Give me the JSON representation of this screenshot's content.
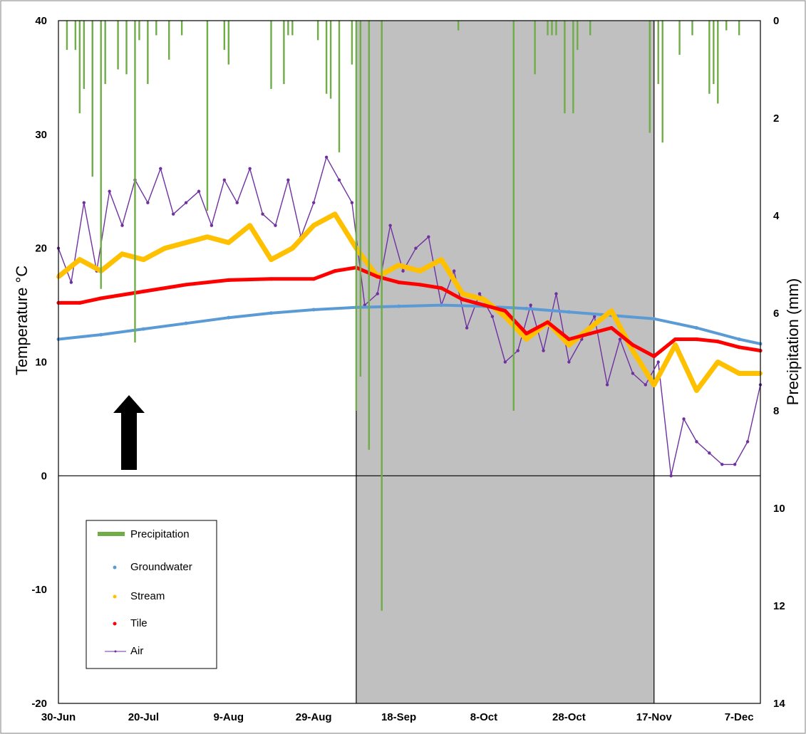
{
  "chart_data": {
    "type": "line",
    "xlabel": "",
    "ylabel": "Temperature °C",
    "y2label": "Precipitation (mm)",
    "ylim": [
      -20,
      40
    ],
    "y2lim": [
      14,
      0
    ],
    "y2_inverted": true,
    "x_range": [
      "2017-06-30",
      "2017-12-12"
    ],
    "x_tick_labels": [
      "30-Jun",
      "20-Jul",
      "9-Aug",
      "29-Aug",
      "18-Sep",
      "8-Oct",
      "28-Oct",
      "17-Nov",
      "7-Dec"
    ],
    "y_tick_labels": [
      "-20",
      "-10",
      "0",
      "10",
      "20",
      "30",
      "40"
    ],
    "y2_tick_labels": [
      "14",
      "12",
      "10",
      "8",
      "6",
      "4",
      "2",
      "0"
    ],
    "shaded_period": [
      "2017-09-08",
      "2017-11-17"
    ],
    "grid": false,
    "legend_position": "bottom-left",
    "legend_labels": [
      "Precipitation",
      "Groundwater",
      "Stream",
      "Tile",
      "Air"
    ],
    "annotation": "up-arrow",
    "colors": {
      "precipitation": "#70ad47",
      "groundwater": "#5b9bd5",
      "stream": "#ffc000",
      "tile": "#ff0000",
      "air": "#7030a0",
      "shade": "#c0c0c0"
    },
    "series": [
      {
        "name": "Precipitation",
        "axis": "y2",
        "kind": "bar",
        "x": [
          "2017-07-02",
          "2017-07-04",
          "2017-07-05",
          "2017-07-06",
          "2017-07-08",
          "2017-07-10",
          "2017-07-11",
          "2017-07-14",
          "2017-07-16",
          "2017-07-18",
          "2017-07-19",
          "2017-07-21",
          "2017-07-23",
          "2017-07-26",
          "2017-07-29",
          "2017-08-04",
          "2017-08-08",
          "2017-08-09",
          "2017-08-19",
          "2017-08-22",
          "2017-08-23",
          "2017-08-24",
          "2017-08-30",
          "2017-09-01",
          "2017-09-02",
          "2017-09-04",
          "2017-09-07",
          "2017-09-08",
          "2017-09-09",
          "2017-09-11",
          "2017-09-14",
          "2017-10-02",
          "2017-10-15",
          "2017-10-20",
          "2017-10-23",
          "2017-10-24",
          "2017-10-25",
          "2017-10-27",
          "2017-10-29",
          "2017-10-30",
          "2017-11-02",
          "2017-11-16",
          "2017-11-18",
          "2017-11-19",
          "2017-11-23",
          "2017-11-26",
          "2017-11-30",
          "2017-12-01",
          "2017-12-02",
          "2017-12-04",
          "2017-12-07"
        ],
        "values": [
          0.6,
          0.6,
          1.9,
          1.4,
          3.2,
          5.5,
          1.3,
          1.0,
          1.1,
          6.6,
          0.4,
          1.3,
          0.3,
          0.8,
          0.3,
          3.9,
          0.6,
          0.9,
          1.4,
          1.3,
          0.3,
          0.3,
          0.4,
          1.5,
          1.6,
          2.7,
          0.9,
          8.0,
          7.3,
          8.8,
          12.1,
          0.2,
          8.0,
          1.1,
          0.3,
          0.3,
          0.3,
          1.9,
          1.9,
          0.6,
          0.3,
          2.3,
          1.3,
          2.5,
          0.7,
          0.3,
          1.5,
          1.3,
          1.7,
          0.2,
          0.3
        ]
      },
      {
        "name": "Groundwater",
        "axis": "y",
        "x": [
          "2017-06-30",
          "2017-07-10",
          "2017-07-20",
          "2017-07-30",
          "2017-08-09",
          "2017-08-19",
          "2017-08-29",
          "2017-09-08",
          "2017-09-18",
          "2017-09-28",
          "2017-10-08",
          "2017-10-18",
          "2017-10-28",
          "2017-11-07",
          "2017-11-17",
          "2017-11-27",
          "2017-12-07",
          "2017-12-12"
        ],
        "values": [
          12.0,
          12.4,
          12.9,
          13.4,
          13.9,
          14.3,
          14.6,
          14.8,
          14.9,
          15.0,
          14.9,
          14.7,
          14.4,
          14.1,
          13.8,
          13.0,
          12.0,
          11.6
        ]
      },
      {
        "name": "Stream",
        "axis": "y",
        "x": [
          "2017-06-30",
          "2017-07-05",
          "2017-07-10",
          "2017-07-15",
          "2017-07-20",
          "2017-07-25",
          "2017-07-30",
          "2017-08-04",
          "2017-08-09",
          "2017-08-14",
          "2017-08-19",
          "2017-08-24",
          "2017-08-29",
          "2017-09-03",
          "2017-09-08",
          "2017-09-13",
          "2017-09-18",
          "2017-09-23",
          "2017-09-28",
          "2017-10-03",
          "2017-10-08",
          "2017-10-13",
          "2017-10-18",
          "2017-10-23",
          "2017-10-28",
          "2017-11-02",
          "2017-11-07",
          "2017-11-12",
          "2017-11-17",
          "2017-11-22",
          "2017-11-27",
          "2017-12-02",
          "2017-12-07",
          "2017-12-12"
        ],
        "values": [
          17.5,
          19.0,
          18.0,
          19.5,
          19.0,
          20.0,
          20.5,
          21.0,
          20.5,
          22.0,
          19.0,
          20.0,
          22.0,
          23.0,
          20.0,
          17.5,
          18.5,
          18.0,
          19.0,
          16.0,
          15.5,
          14.0,
          12.0,
          13.5,
          11.5,
          13.0,
          14.5,
          11.0,
          8.0,
          11.5,
          7.5,
          10.0,
          9.0,
          9.0
        ]
      },
      {
        "name": "Tile",
        "axis": "y",
        "x": [
          "2017-06-30",
          "2017-07-05",
          "2017-07-10",
          "2017-07-20",
          "2017-07-30",
          "2017-08-09",
          "2017-08-19",
          "2017-08-29",
          "2017-09-03",
          "2017-09-08",
          "2017-09-13",
          "2017-09-18",
          "2017-09-23",
          "2017-09-28",
          "2017-10-03",
          "2017-10-08",
          "2017-10-13",
          "2017-10-18",
          "2017-10-23",
          "2017-10-28",
          "2017-11-02",
          "2017-11-07",
          "2017-11-12",
          "2017-11-17",
          "2017-11-22",
          "2017-11-27",
          "2017-12-02",
          "2017-12-07",
          "2017-12-12"
        ],
        "values": [
          15.2,
          15.2,
          15.6,
          16.2,
          16.8,
          17.2,
          17.3,
          17.3,
          18.0,
          18.3,
          17.5,
          17.0,
          16.8,
          16.5,
          15.5,
          15.0,
          14.5,
          12.5,
          13.5,
          12.0,
          12.5,
          13.0,
          11.5,
          10.5,
          12.0,
          12.0,
          11.8,
          11.3,
          11.0
        ]
      },
      {
        "name": "Air",
        "axis": "y",
        "x": [
          "2017-06-30",
          "2017-07-03",
          "2017-07-06",
          "2017-07-09",
          "2017-07-12",
          "2017-07-15",
          "2017-07-18",
          "2017-07-21",
          "2017-07-24",
          "2017-07-27",
          "2017-07-30",
          "2017-08-02",
          "2017-08-05",
          "2017-08-08",
          "2017-08-11",
          "2017-08-14",
          "2017-08-17",
          "2017-08-20",
          "2017-08-23",
          "2017-08-26",
          "2017-08-29",
          "2017-09-01",
          "2017-09-04",
          "2017-09-07",
          "2017-09-10",
          "2017-09-13",
          "2017-09-16",
          "2017-09-19",
          "2017-09-22",
          "2017-09-25",
          "2017-09-28",
          "2017-10-01",
          "2017-10-04",
          "2017-10-07",
          "2017-10-10",
          "2017-10-13",
          "2017-10-16",
          "2017-10-19",
          "2017-10-22",
          "2017-10-25",
          "2017-10-28",
          "2017-10-31",
          "2017-11-03",
          "2017-11-06",
          "2017-11-09",
          "2017-11-12",
          "2017-11-15",
          "2017-11-18",
          "2017-11-21",
          "2017-11-24",
          "2017-11-27",
          "2017-11-30",
          "2017-12-03",
          "2017-12-06",
          "2017-12-09",
          "2017-12-12"
        ],
        "values": [
          20,
          17,
          24,
          18,
          25,
          22,
          26,
          24,
          27,
          23,
          24,
          25,
          22,
          26,
          24,
          27,
          23,
          22,
          26,
          21,
          24,
          28,
          26,
          24,
          15,
          16,
          22,
          18,
          20,
          21,
          15,
          18,
          13,
          16,
          14,
          10,
          11,
          15,
          11,
          16,
          10,
          12,
          14,
          8,
          12,
          9,
          8,
          10,
          0,
          5,
          3,
          2,
          1,
          1,
          3,
          8
        ]
      }
    ]
  }
}
